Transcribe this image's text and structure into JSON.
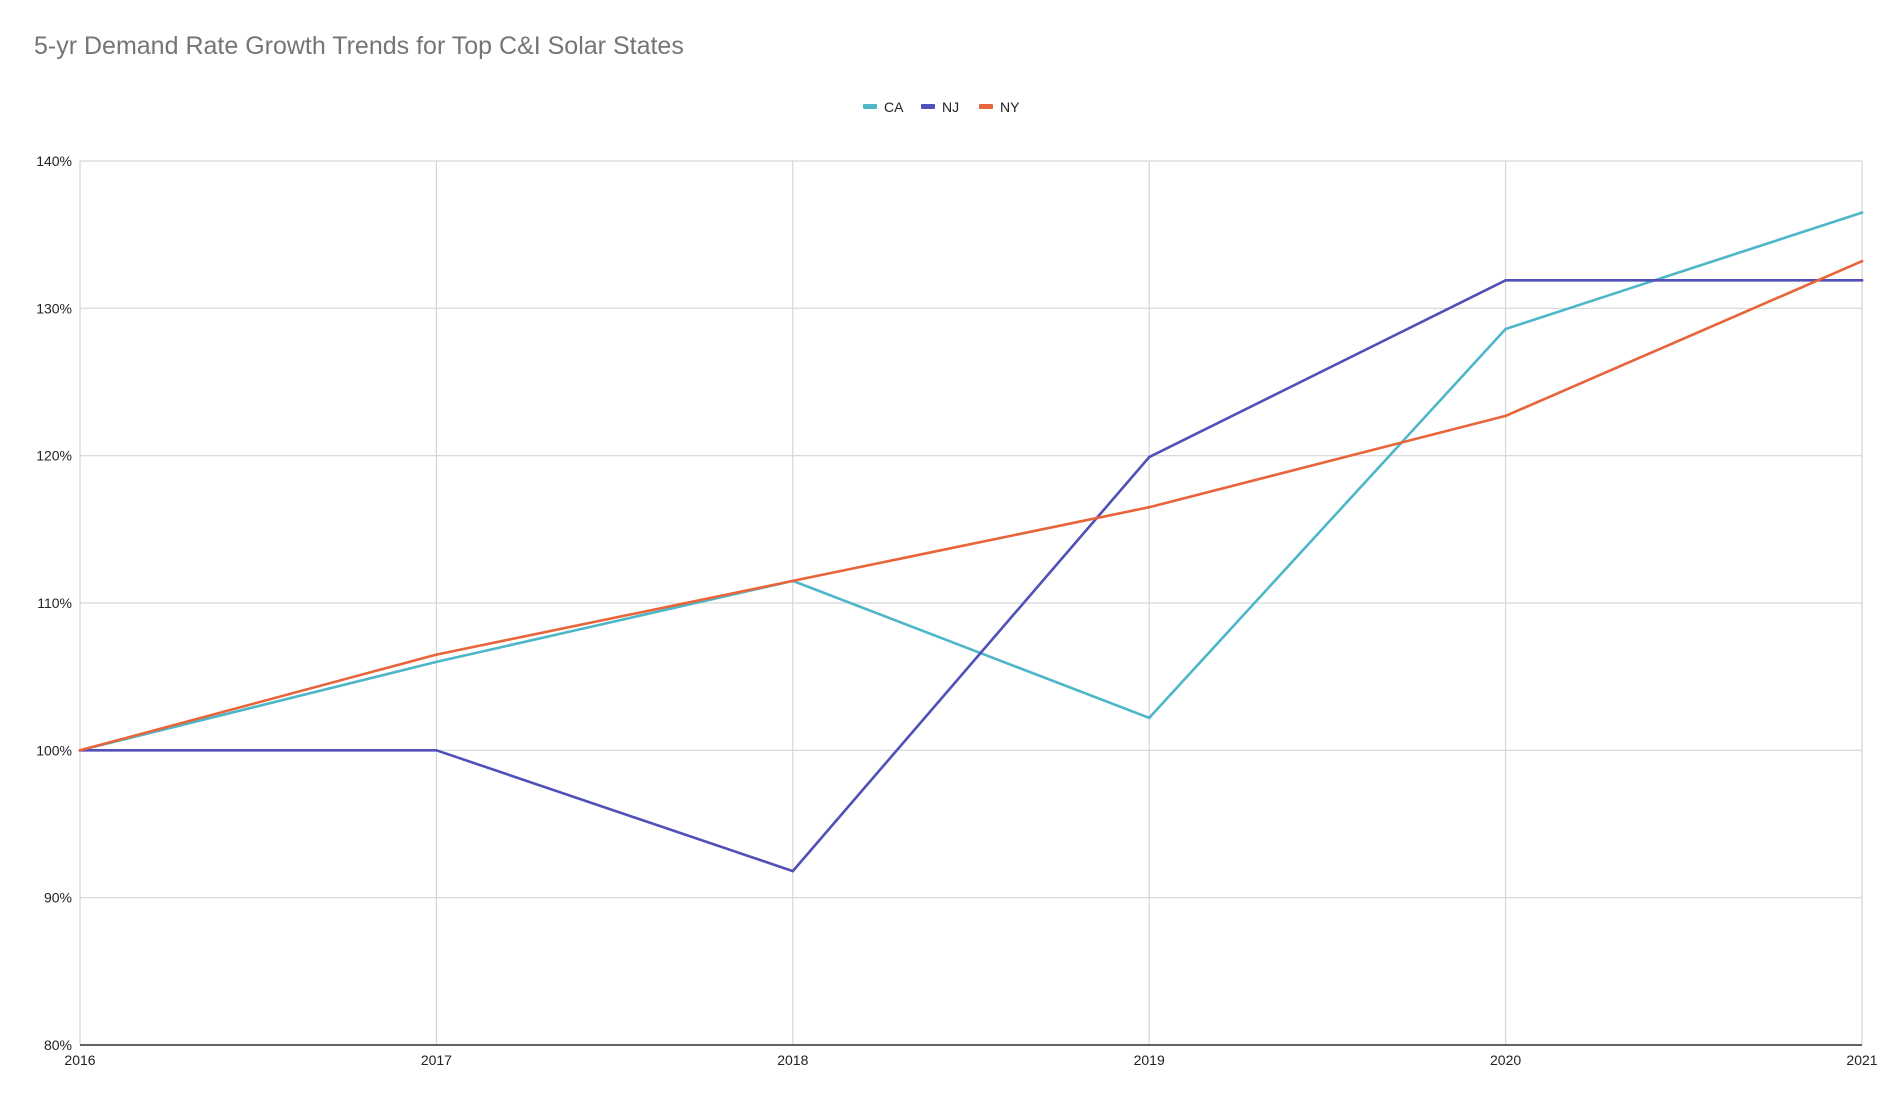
{
  "chart_data": {
    "type": "line",
    "title": "5-yr Demand Rate Growth Trends for Top C&I Solar States",
    "xlabel": "",
    "ylabel": "",
    "x": [
      "2016",
      "2017",
      "2018",
      "2019",
      "2020",
      "2021"
    ],
    "ylim": [
      80,
      140
    ],
    "y_ticks": [
      80,
      90,
      100,
      110,
      120,
      130,
      140
    ],
    "y_tick_labels": [
      "80%",
      "90%",
      "100%",
      "110%",
      "120%",
      "130%",
      "140%"
    ],
    "y_unit": "%",
    "grid": true,
    "legend_position": "top-center",
    "series": [
      {
        "name": "CA",
        "color": "#4db6c9",
        "values": [
          100,
          106,
          111.5,
          102.2,
          128.6,
          136.5
        ]
      },
      {
        "name": "NJ",
        "color": "#5050b8",
        "values": [
          100,
          100,
          91.8,
          119.9,
          131.9,
          131.9
        ]
      },
      {
        "name": "NY",
        "color": "#e8643a",
        "values": [
          100,
          106.5,
          111.5,
          116.5,
          122.7,
          133.2
        ]
      }
    ]
  }
}
